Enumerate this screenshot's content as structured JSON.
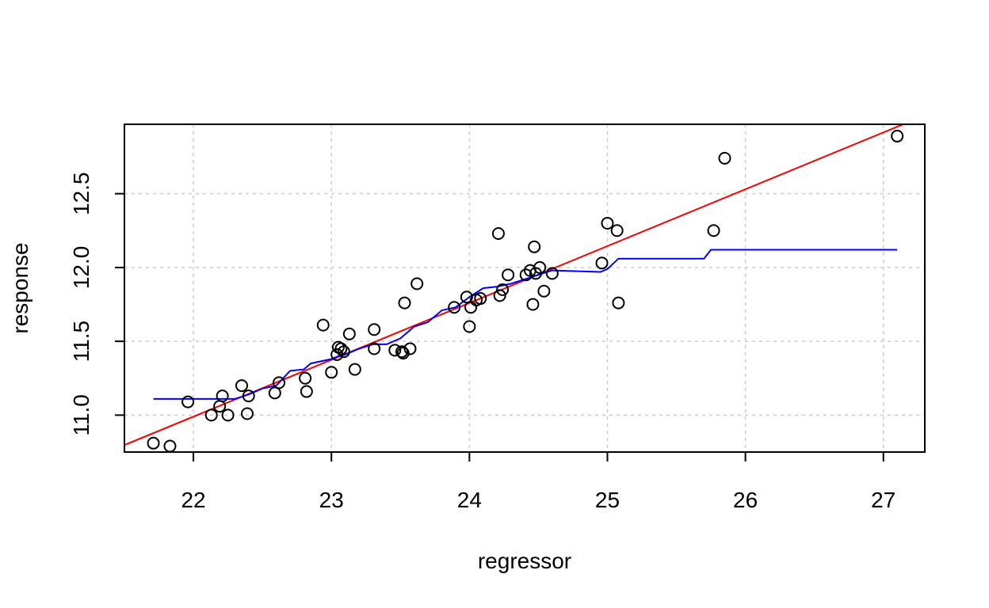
{
  "chart_data": {
    "type": "scatter",
    "title": "",
    "xlabel": "regressor",
    "ylabel": "response",
    "xlim": [
      21.5,
      27.3
    ],
    "ylim": [
      10.75,
      12.97
    ],
    "xticks": [
      "22",
      "23",
      "24",
      "25",
      "26",
      "27"
    ],
    "yticks": [
      "11.0",
      "11.5",
      "12.0",
      "12.5"
    ],
    "grid": true,
    "legend": "none",
    "colors": {
      "points": "#000000",
      "line": "#ff0000",
      "step": "#0000ff",
      "grid": "#cccccc"
    },
    "points": [
      [
        21.71,
        10.81
      ],
      [
        21.83,
        10.79
      ],
      [
        21.96,
        11.09
      ],
      [
        22.13,
        11.0
      ],
      [
        22.19,
        11.06
      ],
      [
        22.21,
        11.13
      ],
      [
        22.25,
        11.0
      ],
      [
        22.35,
        11.2
      ],
      [
        22.39,
        11.01
      ],
      [
        22.4,
        11.13
      ],
      [
        22.59,
        11.15
      ],
      [
        22.62,
        11.22
      ],
      [
        22.81,
        11.25
      ],
      [
        22.82,
        11.16
      ],
      [
        22.94,
        11.61
      ],
      [
        23.0,
        11.29
      ],
      [
        23.04,
        11.41
      ],
      [
        23.05,
        11.46
      ],
      [
        23.07,
        11.45
      ],
      [
        23.09,
        11.43
      ],
      [
        23.13,
        11.55
      ],
      [
        23.17,
        11.31
      ],
      [
        23.31,
        11.58
      ],
      [
        23.31,
        11.45
      ],
      [
        23.46,
        11.44
      ],
      [
        23.51,
        11.43
      ],
      [
        23.52,
        11.42
      ],
      [
        23.53,
        11.76
      ],
      [
        23.57,
        11.45
      ],
      [
        23.62,
        11.89
      ],
      [
        23.89,
        11.73
      ],
      [
        23.98,
        11.8
      ],
      [
        24.0,
        11.6
      ],
      [
        24.01,
        11.73
      ],
      [
        24.05,
        11.78
      ],
      [
        24.08,
        11.79
      ],
      [
        24.21,
        12.23
      ],
      [
        24.22,
        11.81
      ],
      [
        24.24,
        11.85
      ],
      [
        24.28,
        11.95
      ],
      [
        24.41,
        11.95
      ],
      [
        24.44,
        11.98
      ],
      [
        24.46,
        11.75
      ],
      [
        24.47,
        12.14
      ],
      [
        24.48,
        11.96
      ],
      [
        24.51,
        12.0
      ],
      [
        24.54,
        11.84
      ],
      [
        24.6,
        11.96
      ],
      [
        24.96,
        12.03
      ],
      [
        25.0,
        12.3
      ],
      [
        25.07,
        12.25
      ],
      [
        25.08,
        11.76
      ],
      [
        25.77,
        12.25
      ],
      [
        25.85,
        12.74
      ],
      [
        27.1,
        12.89
      ]
    ],
    "fit_line": {
      "slope": 0.385,
      "intercept": 2.52
    },
    "step_series": [
      [
        21.71,
        11.11
      ],
      [
        22.3,
        11.11
      ],
      [
        22.4,
        11.14
      ],
      [
        22.5,
        11.18
      ],
      [
        22.6,
        11.2
      ],
      [
        22.7,
        11.3
      ],
      [
        22.8,
        11.31
      ],
      [
        22.85,
        11.35
      ],
      [
        23.0,
        11.38
      ],
      [
        23.05,
        11.4
      ],
      [
        23.1,
        11.41
      ],
      [
        23.2,
        11.45
      ],
      [
        23.3,
        11.48
      ],
      [
        23.4,
        11.48
      ],
      [
        23.5,
        11.52
      ],
      [
        23.6,
        11.6
      ],
      [
        23.7,
        11.63
      ],
      [
        23.8,
        11.71
      ],
      [
        23.9,
        11.73
      ],
      [
        24.0,
        11.8
      ],
      [
        24.1,
        11.86
      ],
      [
        24.2,
        11.87
      ],
      [
        24.3,
        11.89
      ],
      [
        24.4,
        11.92
      ],
      [
        24.5,
        11.95
      ],
      [
        24.6,
        11.98
      ],
      [
        24.95,
        11.97
      ],
      [
        25.0,
        11.99
      ],
      [
        25.08,
        12.06
      ],
      [
        25.7,
        12.06
      ],
      [
        25.75,
        12.12
      ],
      [
        27.1,
        12.12
      ]
    ]
  }
}
